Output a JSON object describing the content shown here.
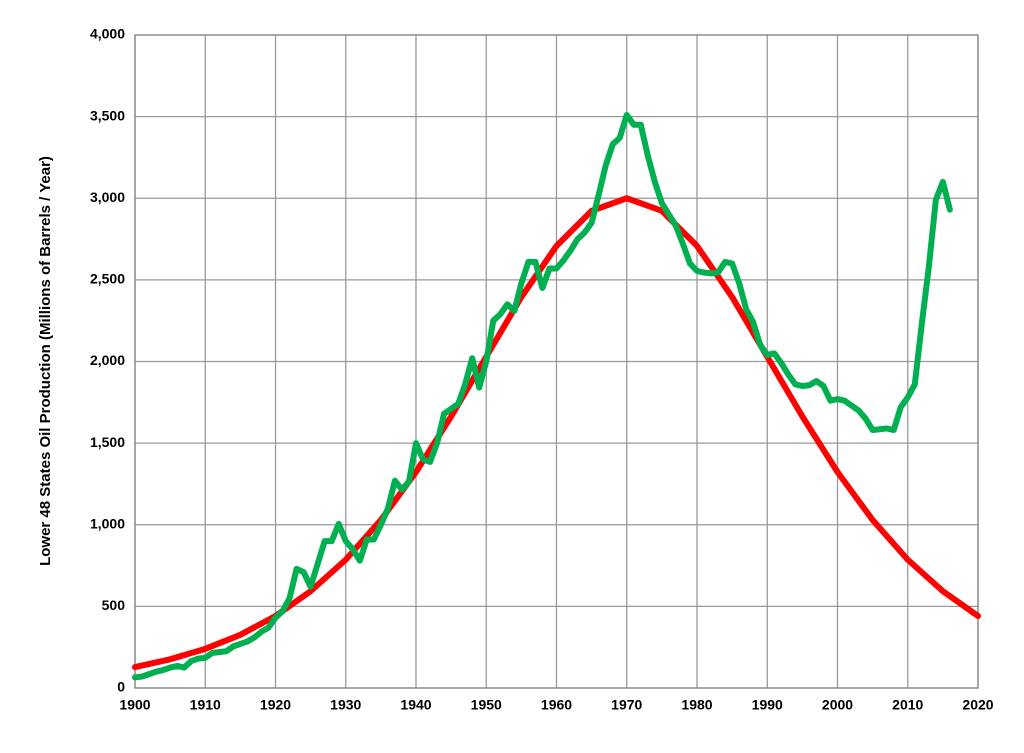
{
  "chart_data": {
    "type": "line",
    "y_label": "Lower 48 States Oil Production (Millions of Barrels / Year)",
    "xlim": [
      1900,
      2020
    ],
    "xticks": [
      1900,
      1910,
      1920,
      1930,
      1940,
      1950,
      1960,
      1970,
      1980,
      1990,
      2000,
      2010,
      2020
    ],
    "ylim": [
      0,
      4000
    ],
    "yticks": [
      0,
      500,
      {
        "value": 1000,
        "label": "1,000"
      },
      {
        "value": 1500,
        "label": "1,500"
      },
      {
        "value": 2000,
        "label": "2,000"
      },
      {
        "value": 2500,
        "label": "2,500"
      },
      {
        "value": 3000,
        "label": "3,000"
      },
      {
        "value": 3500,
        "label": "3,500"
      },
      {
        "value": 4000,
        "label": "4,000"
      }
    ],
    "grid": true,
    "series": [
      {
        "color": "#ff0000",
        "x": [
          1900,
          1905,
          1910,
          1915,
          1920,
          1925,
          1930,
          1935,
          1940,
          1945,
          1950,
          1955,
          1960,
          1965,
          1970,
          1975,
          1980,
          1985,
          1990,
          1995,
          2000,
          2005,
          2010,
          2015,
          2020
        ],
        "values": [
          128,
          176,
          240,
          326,
          441,
          593,
          786,
          1029,
          1323,
          1663,
          2029,
          2395,
          2708,
          2923,
          3000,
          2923,
          2708,
          2395,
          2029,
          1663,
          1323,
          1029,
          786,
          593,
          441
        ]
      },
      {
        "color": "#00b050",
        "x": [
          1900,
          1901,
          1902,
          1903,
          1904,
          1905,
          1906,
          1907,
          1908,
          1909,
          1910,
          1911,
          1912,
          1913,
          1914,
          1915,
          1916,
          1917,
          1918,
          1919,
          1920,
          1921,
          1922,
          1923,
          1924,
          1925,
          1926,
          1927,
          1928,
          1929,
          1930,
          1931,
          1932,
          1933,
          1934,
          1935,
          1936,
          1937,
          1938,
          1939,
          1940,
          1941,
          1942,
          1943,
          1944,
          1945,
          1946,
          1947,
          1948,
          1949,
          1950,
          1951,
          1952,
          1953,
          1954,
          1955,
          1956,
          1957,
          1958,
          1959,
          1960,
          1961,
          1962,
          1963,
          1964,
          1965,
          1966,
          1967,
          1968,
          1969,
          1970,
          1971,
          1972,
          1973,
          1974,
          1975,
          1976,
          1977,
          1978,
          1979,
          1980,
          1981,
          1982,
          1983,
          1984,
          1985,
          1986,
          1987,
          1988,
          1989,
          1990,
          1991,
          1992,
          1993,
          1994,
          1995,
          1996,
          1997,
          1998,
          1999,
          2000,
          2001,
          2002,
          2003,
          2004,
          2005,
          2006,
          2007,
          2008,
          2009,
          2010,
          2011,
          2012,
          2013,
          2014,
          2015,
          2016
        ],
        "values": [
          65,
          70,
          85,
          100,
          110,
          125,
          135,
          125,
          165,
          180,
          185,
          215,
          220,
          225,
          255,
          270,
          285,
          310,
          345,
          370,
          430,
          470,
          550,
          730,
          710,
          620,
          760,
          900,
          900,
          1005,
          900,
          850,
          780,
          910,
          910,
          1000,
          1100,
          1270,
          1215,
          1265,
          1500,
          1400,
          1385,
          1500,
          1680,
          1710,
          1740,
          1860,
          2020,
          1840,
          2000,
          2250,
          2290,
          2350,
          2310,
          2480,
          2610,
          2610,
          2450,
          2570,
          2570,
          2620,
          2680,
          2750,
          2790,
          2850,
          3020,
          3200,
          3330,
          3370,
          3510,
          3450,
          3450,
          3260,
          3100,
          2970,
          2900,
          2830,
          2720,
          2600,
          2555,
          2545,
          2540,
          2545,
          2610,
          2600,
          2480,
          2320,
          2240,
          2100,
          2040,
          2050,
          1990,
          1920,
          1860,
          1850,
          1855,
          1880,
          1850,
          1760,
          1770,
          1760,
          1730,
          1700,
          1650,
          1580,
          1585,
          1590,
          1580,
          1720,
          1780,
          1860,
          2230,
          2580,
          2990,
          3100,
          2930
        ]
      }
    ]
  }
}
